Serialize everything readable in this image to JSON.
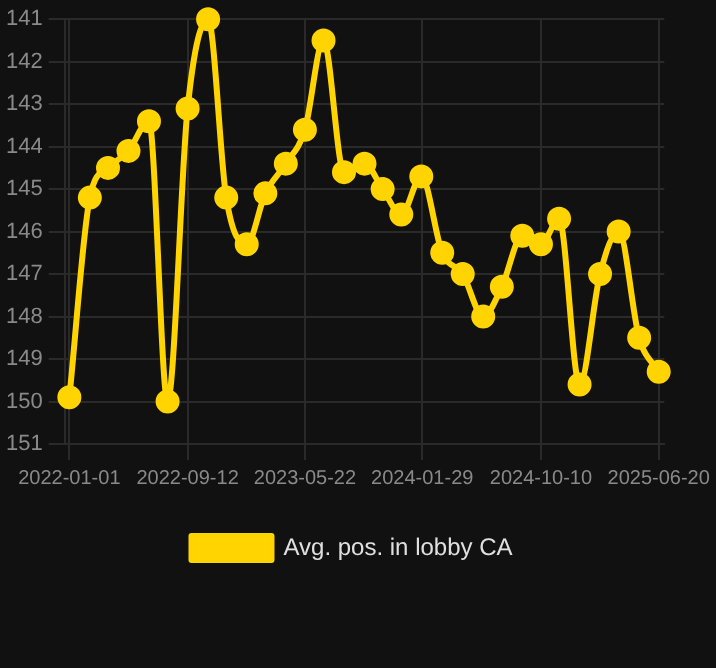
{
  "chart_data": {
    "type": "line",
    "x": [
      "2022-01-01",
      "2022-02-14",
      "2022-03-25",
      "2022-05-08",
      "2022-06-21",
      "2022-07-31",
      "2022-09-12",
      "2022-10-26",
      "2022-12-04",
      "2023-01-17",
      "2023-02-26",
      "2023-04-11",
      "2023-05-22",
      "2023-07-01",
      "2023-08-14",
      "2023-09-27",
      "2023-11-05",
      "2023-12-15",
      "2024-01-27",
      "2024-03-12",
      "2024-04-25",
      "2024-06-08",
      "2024-07-18",
      "2024-08-31",
      "2024-10-10",
      "2024-11-18",
      "2025-01-01",
      "2025-02-14",
      "2025-03-26",
      "2025-05-09",
      "2025-06-20"
    ],
    "series": [
      {
        "name": "Avg. pos. in lobby CA",
        "color": "#ffd400",
        "values": [
          149.9,
          145.2,
          144.5,
          144.1,
          143.4,
          150.0,
          143.1,
          141.0,
          145.2,
          146.3,
          145.1,
          144.4,
          143.6,
          141.5,
          144.6,
          144.4,
          145.0,
          145.6,
          144.7,
          146.5,
          147.0,
          148.0,
          147.3,
          146.1,
          146.3,
          145.7,
          149.6,
          147.0,
          146.0,
          148.5,
          149.3
        ]
      }
    ],
    "xlim": [
      "2021-12-22",
      "2025-07-02"
    ],
    "xticks": [
      "2022-01-01",
      "2022-09-12",
      "2023-05-22",
      "2024-01-29",
      "2024-10-10",
      "2025-06-20"
    ],
    "ylim": [
      151,
      141
    ],
    "yticks": [
      141,
      142,
      143,
      144,
      145,
      146,
      147,
      148,
      149,
      150,
      151
    ],
    "grid": true,
    "legend": "bottom",
    "marker": "circle",
    "line_style": "solid"
  }
}
